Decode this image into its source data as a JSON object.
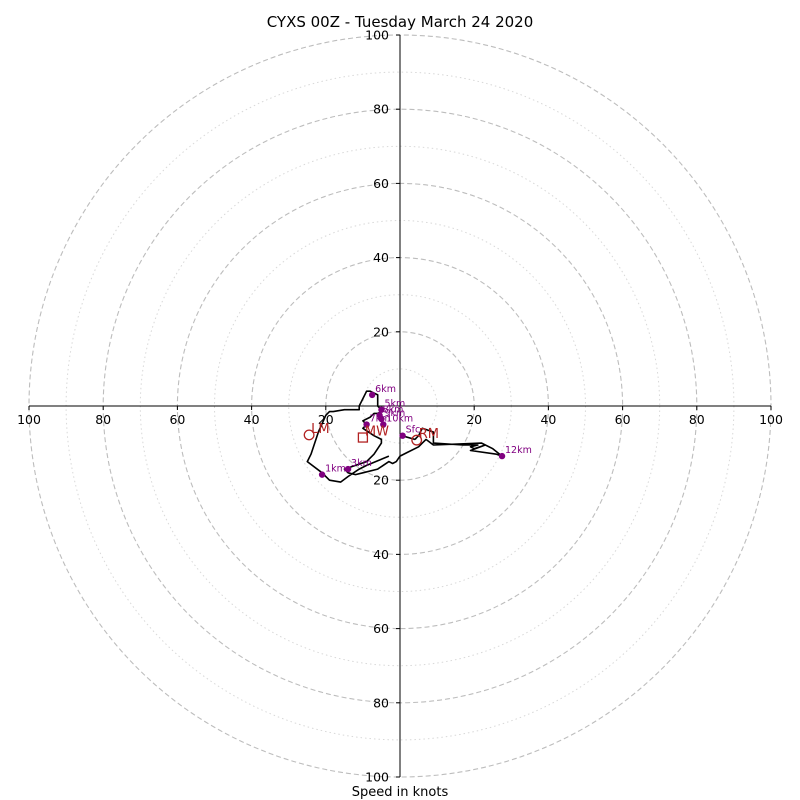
{
  "chart_data": {
    "type": "hodograph",
    "title": "CYXS 00Z - Tuesday March 24 2020",
    "xlabel": "Speed in knots",
    "xlim": [
      -100,
      100
    ],
    "ylim": [
      -100,
      100
    ],
    "x_ticks": [
      "100",
      "80",
      "60",
      "40",
      "20",
      "",
      "20",
      "40",
      "60",
      "80",
      "100"
    ],
    "y_ticks": [
      "100",
      "80",
      "60",
      "40",
      "20",
      "",
      "20",
      "40",
      "60",
      "80",
      "100"
    ],
    "x_tick_values": [
      -100,
      -80,
      -60,
      -40,
      -20,
      0,
      20,
      40,
      60,
      80,
      100
    ],
    "y_tick_values": [
      100,
      80,
      60,
      40,
      20,
      0,
      -20,
      -40,
      -60,
      -80,
      -100
    ],
    "major_rings": [
      20,
      40,
      60,
      80,
      100
    ],
    "minor_rings": [
      10,
      30,
      50,
      70,
      90
    ],
    "colors": {
      "trace": "#000000",
      "height_marker": "#800080",
      "motion_marker": "#b22222",
      "major_ring": "#bdbdbd",
      "minor_ring": "#d8d8d8"
    },
    "hodograph_trace": [
      [
        0.5,
        -8
      ],
      [
        4,
        -9
      ],
      [
        5,
        -8
      ],
      [
        6,
        -6
      ],
      [
        9,
        -7
      ],
      [
        9,
        -10
      ],
      [
        17,
        -10.5
      ],
      [
        21,
        -10.5
      ],
      [
        19,
        -11
      ],
      [
        20,
        -11.5
      ],
      [
        23,
        -10.5
      ],
      [
        19,
        -12
      ],
      [
        26,
        -13
      ],
      [
        27.5,
        -13.5
      ],
      [
        25,
        -11.5
      ],
      [
        22,
        -10
      ],
      [
        9,
        -10.5
      ],
      [
        7,
        -9
      ],
      [
        6,
        -10
      ],
      [
        5,
        -11
      ],
      [
        2,
        -12.5
      ],
      [
        0,
        -13.5
      ],
      [
        -1,
        -15
      ],
      [
        -2,
        -15.5
      ],
      [
        -3,
        -15
      ],
      [
        -6,
        -17
      ],
      [
        -10,
        -18
      ],
      [
        -12,
        -18.5
      ],
      [
        -14,
        -18
      ],
      [
        -15,
        -17
      ],
      [
        -12,
        -16
      ],
      [
        -9,
        -15
      ],
      [
        -7,
        -13
      ],
      [
        -5,
        -10
      ],
      [
        -5,
        -9
      ],
      [
        -7,
        -8
      ],
      [
        -10,
        -6
      ],
      [
        -9,
        -5
      ],
      [
        -10,
        -4
      ],
      [
        -8,
        -3
      ],
      [
        -7,
        -2
      ],
      [
        -6,
        -2
      ],
      [
        -5,
        -1.5
      ],
      [
        -5,
        -1
      ],
      [
        -6,
        0
      ],
      [
        -6,
        2
      ],
      [
        -6,
        3
      ],
      [
        -8,
        4
      ],
      [
        -9,
        4
      ],
      [
        -10,
        2
      ],
      [
        -11,
        0
      ],
      [
        -11,
        -1
      ],
      [
        -15,
        -1
      ],
      [
        -18,
        -1.5
      ],
      [
        -19,
        -1.5
      ],
      [
        -20,
        -2.5
      ],
      [
        -22,
        -7
      ],
      [
        -24,
        -13
      ],
      [
        -25,
        -15
      ],
      [
        -21,
        -18
      ],
      [
        -19,
        -20
      ],
      [
        -16,
        -20.5
      ],
      [
        -14,
        -19
      ],
      [
        -11,
        -17
      ],
      [
        -9,
        -16
      ],
      [
        -3,
        -13.5
      ]
    ],
    "height_markers": [
      {
        "label": "Sfc",
        "u": 0.7,
        "v": -8
      },
      {
        "label": "1km",
        "u": -21,
        "v": -18.5
      },
      {
        "label": "3km",
        "u": -14,
        "v": -17
      },
      {
        "label": "5km",
        "u": -5,
        "v": -1
      },
      {
        "label": "6km",
        "u": -7.5,
        "v": 3
      },
      {
        "label": "7km",
        "u": -9,
        "v": -5
      },
      {
        "label": "8km",
        "u": -5.5,
        "v": -2.5
      },
      {
        "label": "9km",
        "u": -5,
        "v": -3.5
      },
      {
        "label": "10km",
        "u": -4.5,
        "v": -5
      },
      {
        "label": "12km",
        "u": 27.5,
        "v": -13.5
      }
    ],
    "storm_motion": [
      {
        "label": "LM",
        "u": -24.5,
        "v": -7.8,
        "shape": "circle"
      },
      {
        "label": "RM",
        "u": 4.5,
        "v": -9.2,
        "shape": "circle"
      },
      {
        "label": "MW",
        "u": -10,
        "v": -8.5,
        "shape": "square"
      }
    ]
  }
}
